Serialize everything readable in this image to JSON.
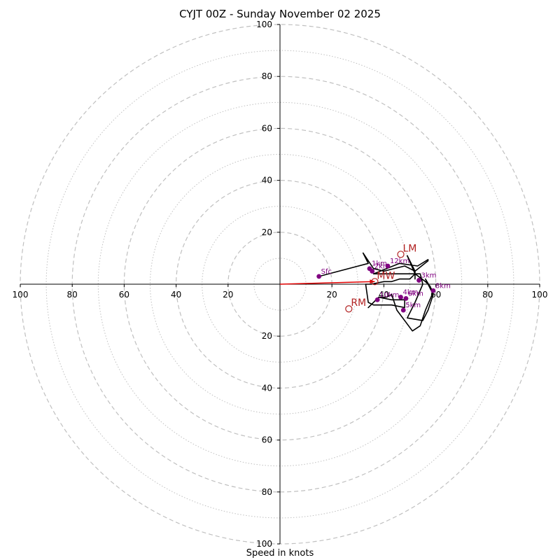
{
  "chart_data": {
    "type": "hodograph",
    "title": "CYJT 00Z - Sunday November 02 2025",
    "xlabel": "Speed in knots",
    "ylabel": "",
    "xlim": [
      -100,
      100
    ],
    "ylim": [
      -100,
      100
    ],
    "ring_major": [
      20,
      40,
      60,
      80,
      100
    ],
    "ring_minor": [
      10,
      30,
      50,
      70,
      90
    ],
    "tick_labels": {
      "x_left": [
        "100",
        "80",
        "60",
        "40",
        "20"
      ],
      "x_right": [
        "20",
        "40",
        "60",
        "80",
        "100"
      ],
      "y_up": [
        "20",
        "40",
        "60",
        "80",
        "100"
      ],
      "y_down": [
        "20",
        "40",
        "60",
        "80",
        "100"
      ]
    },
    "trace": [
      [
        15,
        3
      ],
      [
        34,
        8
      ],
      [
        32,
        12
      ],
      [
        34,
        9
      ],
      [
        36,
        6
      ],
      [
        40,
        5
      ],
      [
        48,
        7
      ],
      [
        52,
        5
      ],
      [
        57,
        9
      ],
      [
        57,
        9.5
      ],
      [
        53,
        7
      ],
      [
        46,
        8
      ],
      [
        36,
        4
      ],
      [
        54,
        4
      ],
      [
        55,
        0
      ],
      [
        52,
        -7
      ],
      [
        49,
        -13
      ],
      [
        55,
        -14
      ],
      [
        57,
        -10
      ],
      [
        59,
        -4
      ],
      [
        56,
        2
      ],
      [
        59,
        -3
      ],
      [
        56,
        -10
      ],
      [
        54,
        -16
      ],
      [
        51,
        -18
      ],
      [
        45,
        -10
      ],
      [
        43,
        -4
      ],
      [
        41,
        -5
      ],
      [
        38,
        -5
      ],
      [
        34,
        -9
      ],
      [
        38,
        -5
      ],
      [
        43,
        -6
      ],
      [
        46,
        -6
      ],
      [
        48,
        -6
      ],
      [
        48,
        -9
      ],
      [
        43,
        -8
      ],
      [
        36,
        -8
      ],
      [
        34,
        -7
      ],
      [
        33,
        0
      ],
      [
        35,
        0
      ],
      [
        40,
        1
      ],
      [
        43,
        1
      ],
      [
        46,
        2
      ],
      [
        50,
        2
      ],
      [
        52,
        4
      ],
      [
        52,
        2
      ],
      [
        52,
        5
      ],
      [
        49,
        11
      ],
      [
        52,
        4
      ],
      [
        56,
        1
      ],
      [
        58,
        -1
      ]
    ],
    "height_points": [
      {
        "label": "Sfc",
        "u": 15,
        "v": 3
      },
      {
        "label": "1km",
        "u": 34.5,
        "v": 6
      },
      {
        "label": "2km",
        "u": 35.5,
        "v": 5
      },
      {
        "label": "12km",
        "u": 41.5,
        "v": 7
      },
      {
        "label": "3km",
        "u": 53.5,
        "v": 1.5
      },
      {
        "label": "8km",
        "u": 59,
        "v": -2.5
      },
      {
        "label": "4km",
        "u": 46.5,
        "v": -5
      },
      {
        "label": "6km",
        "u": 48.5,
        "v": -5.5
      },
      {
        "label": "5km",
        "u": 47.5,
        "v": -10
      },
      {
        "label": "10km",
        "u": 37.5,
        "v": -6
      }
    ],
    "markers": [
      {
        "label": "LM",
        "u": 46.5,
        "v": 11.5
      },
      {
        "label": "MW",
        "u": 36.5,
        "v": 1
      },
      {
        "label": "RM",
        "u": 26.5,
        "v": -9.5
      }
    ],
    "mean_wind_vector": {
      "u": 36.5,
      "v": 1
    },
    "colors": {
      "trace": "#000000",
      "points": "#800080",
      "markers": "#b22222",
      "vector": "#e00000",
      "rings": "#c0c0c0"
    }
  }
}
